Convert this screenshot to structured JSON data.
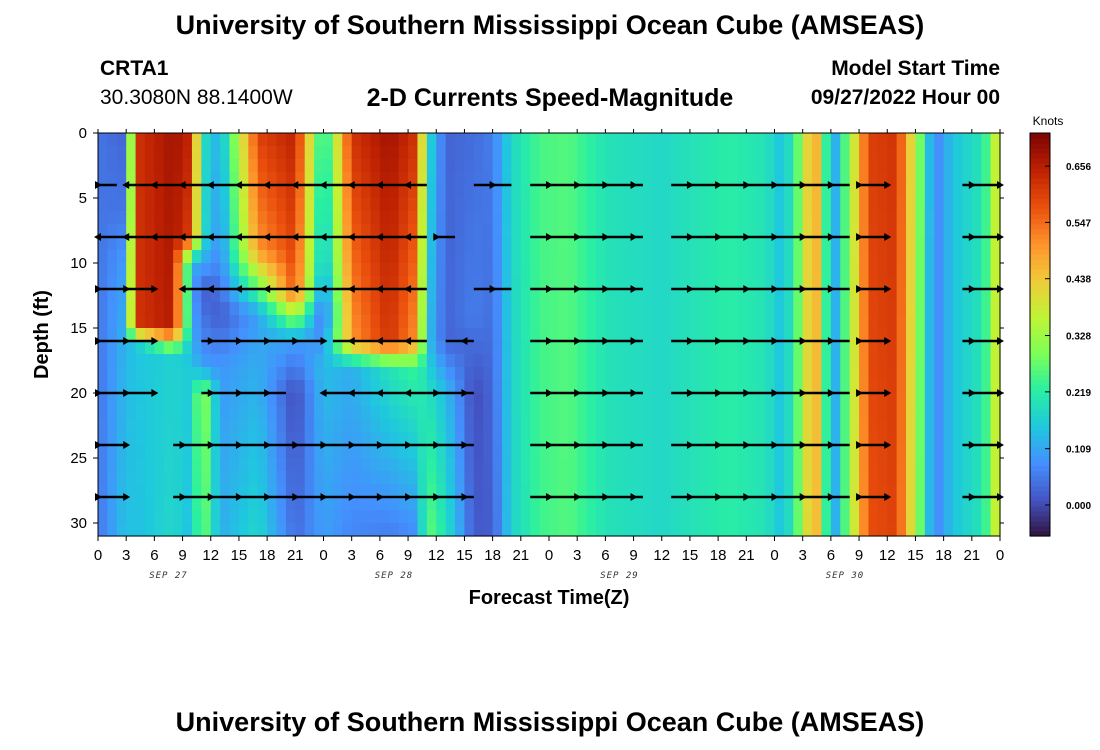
{
  "header": {
    "title": "University of Southern Mississippi Ocean Cube (AMSEAS)",
    "station": "CRTA1",
    "coords": "30.3080N  88.1400W",
    "subtitle": "2-D Currents Speed-Magnitude",
    "model_label": "Model Start Time",
    "model_date": "09/27/2022 Hour 00"
  },
  "footer": {
    "title": "University of Southern Mississippi Ocean Cube (AMSEAS)"
  },
  "chart_data": {
    "type": "heatmap",
    "title": "2-D Currents Speed-Magnitude",
    "xlabel": "Forecast Time(Z)",
    "ylabel": "Depth (ft)",
    "xlim": [
      0,
      96
    ],
    "ylim": [
      31,
      0
    ],
    "x_ticks": [
      0,
      3,
      6,
      9,
      12,
      15,
      18,
      21,
      24,
      27,
      30,
      33,
      36,
      39,
      42,
      45,
      48,
      51,
      54,
      57,
      60,
      63,
      66,
      69,
      72,
      75,
      78,
      81,
      84,
      87,
      90,
      93,
      96
    ],
    "x_tick_labels": [
      "0",
      "3",
      "6",
      "9",
      "12",
      "15",
      "18",
      "21",
      "0",
      "3",
      "6",
      "9",
      "12",
      "15",
      "18",
      "21",
      "0",
      "3",
      "6",
      "9",
      "12",
      "15",
      "18",
      "21",
      "0",
      "3",
      "6",
      "9",
      "12",
      "15",
      "18",
      "21",
      "0"
    ],
    "date_labels": [
      {
        "hour": 7.5,
        "label": "SEP 27"
      },
      {
        "hour": 31.5,
        "label": "SEP 28"
      },
      {
        "hour": 55.5,
        "label": "SEP 29"
      },
      {
        "hour": 79.5,
        "label": "SEP 30"
      }
    ],
    "y_ticks": [
      0,
      5,
      10,
      15,
      20,
      25,
      30
    ],
    "colorbar": {
      "unit": "Knots",
      "range": [
        -0.06,
        0.72
      ],
      "tick_values": [
        0.0,
        0.109,
        0.219,
        0.328,
        0.438,
        0.547,
        0.656
      ],
      "tick_labels": [
        "0.000",
        "0.109",
        "0.219",
        "0.328",
        "0.438",
        "0.547",
        "0.656"
      ]
    },
    "colormap": [
      "#30123b",
      "#4454c4",
      "#4490fe",
      "#1fc8de",
      "#29efa2",
      "#7dff56",
      "#c1f334",
      "#f1ca3a",
      "#fe922a",
      "#ea4f0d",
      "#be2102",
      "#7a0403"
    ],
    "depths": [
      4,
      8,
      12,
      16,
      20,
      24,
      28
    ],
    "speed_knots_by_hour": [
      {
        "hour": 0,
        "profile": [
          [
            0,
            0.05
          ],
          [
            31,
            0.05
          ]
        ]
      },
      {
        "hour": 3,
        "profile": [
          [
            0,
            0.03
          ],
          [
            6,
            0.05
          ],
          [
            10,
            0.1
          ],
          [
            16,
            0.13
          ],
          [
            31,
            0.15
          ]
        ]
      },
      {
        "hour": 4,
        "profile": [
          [
            0,
            0.62
          ],
          [
            15,
            0.62
          ],
          [
            16,
            0.15
          ],
          [
            31,
            0.14
          ]
        ]
      },
      {
        "hour": 8,
        "profile": [
          [
            0,
            0.68
          ],
          [
            15,
            0.66
          ],
          [
            17,
            0.17
          ],
          [
            31,
            0.18
          ]
        ]
      },
      {
        "hour": 10,
        "profile": [
          [
            0,
            0.64
          ],
          [
            8,
            0.6
          ],
          [
            10,
            0.12
          ],
          [
            16,
            0.12
          ],
          [
            18,
            0.16
          ],
          [
            31,
            0.14
          ]
        ]
      },
      {
        "hour": 11,
        "profile": [
          [
            0,
            0.2
          ],
          [
            8,
            0.2
          ],
          [
            12,
            0.02
          ],
          [
            18,
            0.1
          ],
          [
            20,
            0.35
          ],
          [
            31,
            0.3
          ]
        ]
      },
      {
        "hour": 13,
        "profile": [
          [
            0,
            0.12
          ],
          [
            10,
            0.07
          ],
          [
            14,
            0.02
          ],
          [
            18,
            0.09
          ],
          [
            31,
            0.12
          ]
        ]
      },
      {
        "hour": 17,
        "profile": [
          [
            0,
            0.6
          ],
          [
            9,
            0.5
          ],
          [
            14,
            0.1
          ],
          [
            18,
            0.12
          ],
          [
            31,
            0.18
          ]
        ]
      },
      {
        "hour": 21,
        "profile": [
          [
            0,
            0.65
          ],
          [
            12,
            0.58
          ],
          [
            16,
            0.1
          ],
          [
            20,
            0.0
          ],
          [
            31,
            0.04
          ]
        ]
      },
      {
        "hour": 24,
        "profile": [
          [
            0,
            0.18
          ],
          [
            10,
            0.12
          ],
          [
            14,
            0.03
          ],
          [
            18,
            0.14
          ],
          [
            31,
            0.1
          ]
        ]
      },
      {
        "hour": 27,
        "profile": [
          [
            0,
            0.62
          ],
          [
            16,
            0.5
          ],
          [
            18,
            0.12
          ],
          [
            31,
            0.07
          ]
        ]
      },
      {
        "hour": 31,
        "profile": [
          [
            0,
            0.68
          ],
          [
            16,
            0.62
          ],
          [
            18,
            0.2
          ],
          [
            31,
            0.06
          ]
        ]
      },
      {
        "hour": 34,
        "profile": [
          [
            0,
            0.62
          ],
          [
            16,
            0.5
          ],
          [
            18,
            0.24
          ],
          [
            31,
            0.08
          ]
        ]
      },
      {
        "hour": 35,
        "profile": [
          [
            0,
            0.2
          ],
          [
            16,
            0.15
          ],
          [
            20,
            0.2
          ],
          [
            31,
            0.28
          ]
        ]
      },
      {
        "hour": 37,
        "profile": [
          [
            0,
            0.03
          ],
          [
            16,
            0.03
          ],
          [
            20,
            0.14
          ],
          [
            31,
            0.2
          ]
        ]
      },
      {
        "hour": 40,
        "profile": [
          [
            0,
            0.04
          ],
          [
            14,
            0.06
          ],
          [
            20,
            0.0
          ],
          [
            31,
            0.02
          ]
        ]
      },
      {
        "hour": 42,
        "profile": [
          [
            0,
            0.06
          ],
          [
            31,
            0.02
          ]
        ]
      },
      {
        "hour": 44,
        "profile": [
          [
            0,
            0.18
          ],
          [
            31,
            0.17
          ]
        ]
      },
      {
        "hour": 47,
        "profile": [
          [
            0,
            0.25
          ],
          [
            31,
            0.24
          ]
        ]
      },
      {
        "hour": 50,
        "profile": [
          [
            0,
            0.26
          ],
          [
            31,
            0.26
          ]
        ]
      },
      {
        "hour": 54,
        "profile": [
          [
            0,
            0.2
          ],
          [
            31,
            0.2
          ]
        ]
      },
      {
        "hour": 60,
        "profile": [
          [
            0,
            0.18
          ],
          [
            31,
            0.18
          ]
        ]
      },
      {
        "hour": 67,
        "profile": [
          [
            0,
            0.22
          ],
          [
            31,
            0.22
          ]
        ]
      },
      {
        "hour": 71,
        "profile": [
          [
            0,
            0.2
          ],
          [
            31,
            0.2
          ]
        ]
      },
      {
        "hour": 73,
        "profile": [
          [
            0,
            0.14
          ],
          [
            31,
            0.14
          ]
        ]
      },
      {
        "hour": 75,
        "profile": [
          [
            0,
            0.32
          ],
          [
            31,
            0.32
          ]
        ]
      },
      {
        "hour": 76,
        "profile": [
          [
            0,
            0.52
          ],
          [
            31,
            0.5
          ]
        ]
      },
      {
        "hour": 77,
        "profile": [
          [
            0,
            0.4
          ],
          [
            31,
            0.4
          ]
        ]
      },
      {
        "hour": 78,
        "profile": [
          [
            0,
            0.06
          ],
          [
            31,
            0.06
          ]
        ]
      },
      {
        "hour": 80,
        "profile": [
          [
            0,
            0.32
          ],
          [
            31,
            0.32
          ]
        ]
      },
      {
        "hour": 82,
        "profile": [
          [
            0,
            0.6
          ],
          [
            31,
            0.58
          ]
        ]
      },
      {
        "hour": 85,
        "profile": [
          [
            0,
            0.62
          ],
          [
            31,
            0.6
          ]
        ]
      },
      {
        "hour": 87,
        "profile": [
          [
            0,
            0.36
          ],
          [
            31,
            0.35
          ]
        ]
      },
      {
        "hour": 89,
        "profile": [
          [
            0,
            0.06
          ],
          [
            31,
            0.06
          ]
        ]
      },
      {
        "hour": 91,
        "profile": [
          [
            0,
            0.15
          ],
          [
            31,
            0.15
          ]
        ]
      },
      {
        "hour": 94,
        "profile": [
          [
            0,
            0.2
          ],
          [
            31,
            0.2
          ]
        ]
      },
      {
        "hour": 95,
        "profile": [
          [
            0,
            0.28
          ],
          [
            31,
            0.28
          ]
        ]
      },
      {
        "hour": 96,
        "profile": [
          [
            0,
            0.45
          ],
          [
            31,
            0.45
          ]
        ]
      }
    ],
    "vectors": [
      {
        "depth": 4,
        "segments": [
          [
            0,
            2,
            "E"
          ],
          [
            3,
            35,
            "W"
          ],
          [
            40,
            44,
            "E"
          ],
          [
            46,
            58,
            "E"
          ],
          [
            61,
            80,
            "E"
          ],
          [
            81,
            84,
            "E"
          ],
          [
            92,
            96,
            "E"
          ]
        ]
      },
      {
        "depth": 8,
        "segments": [
          [
            0,
            35,
            "W"
          ],
          [
            36,
            38,
            "E"
          ],
          [
            46,
            58,
            "E"
          ],
          [
            61,
            80,
            "E"
          ],
          [
            81,
            84,
            "E"
          ],
          [
            92,
            96,
            "E"
          ]
        ]
      },
      {
        "depth": 12,
        "segments": [
          [
            0,
            6,
            "E"
          ],
          [
            9,
            12,
            "W"
          ],
          [
            12,
            35,
            "W"
          ],
          [
            40,
            44,
            "E"
          ],
          [
            46,
            58,
            "E"
          ],
          [
            61,
            80,
            "E"
          ],
          [
            81,
            84,
            "E"
          ],
          [
            92,
            96,
            "E"
          ]
        ]
      },
      {
        "depth": 16,
        "segments": [
          [
            0,
            6,
            "E"
          ],
          [
            11,
            24,
            "E"
          ],
          [
            25,
            35,
            "W"
          ],
          [
            37,
            40,
            "W"
          ],
          [
            46,
            58,
            "E"
          ],
          [
            61,
            80,
            "E"
          ],
          [
            81,
            84,
            "E"
          ],
          [
            92,
            96,
            "E"
          ]
        ]
      },
      {
        "depth": 20,
        "segments": [
          [
            0,
            6,
            "E"
          ],
          [
            11,
            20,
            "E"
          ],
          [
            24,
            35,
            "W"
          ],
          [
            35,
            40,
            "E"
          ],
          [
            46,
            58,
            "E"
          ],
          [
            61,
            80,
            "E"
          ],
          [
            81,
            84,
            "E"
          ],
          [
            92,
            96,
            "E"
          ]
        ]
      },
      {
        "depth": 24,
        "segments": [
          [
            0,
            3,
            "E"
          ],
          [
            8,
            35,
            "E"
          ],
          [
            35,
            40,
            "E"
          ],
          [
            46,
            58,
            "E"
          ],
          [
            61,
            80,
            "E"
          ],
          [
            81,
            84,
            "E"
          ],
          [
            92,
            96,
            "E"
          ]
        ]
      },
      {
        "depth": 28,
        "segments": [
          [
            0,
            3,
            "E"
          ],
          [
            8,
            35,
            "E"
          ],
          [
            35,
            40,
            "E"
          ],
          [
            46,
            58,
            "E"
          ],
          [
            61,
            80,
            "E"
          ],
          [
            81,
            84,
            "E"
          ],
          [
            92,
            96,
            "E"
          ]
        ]
      }
    ]
  }
}
